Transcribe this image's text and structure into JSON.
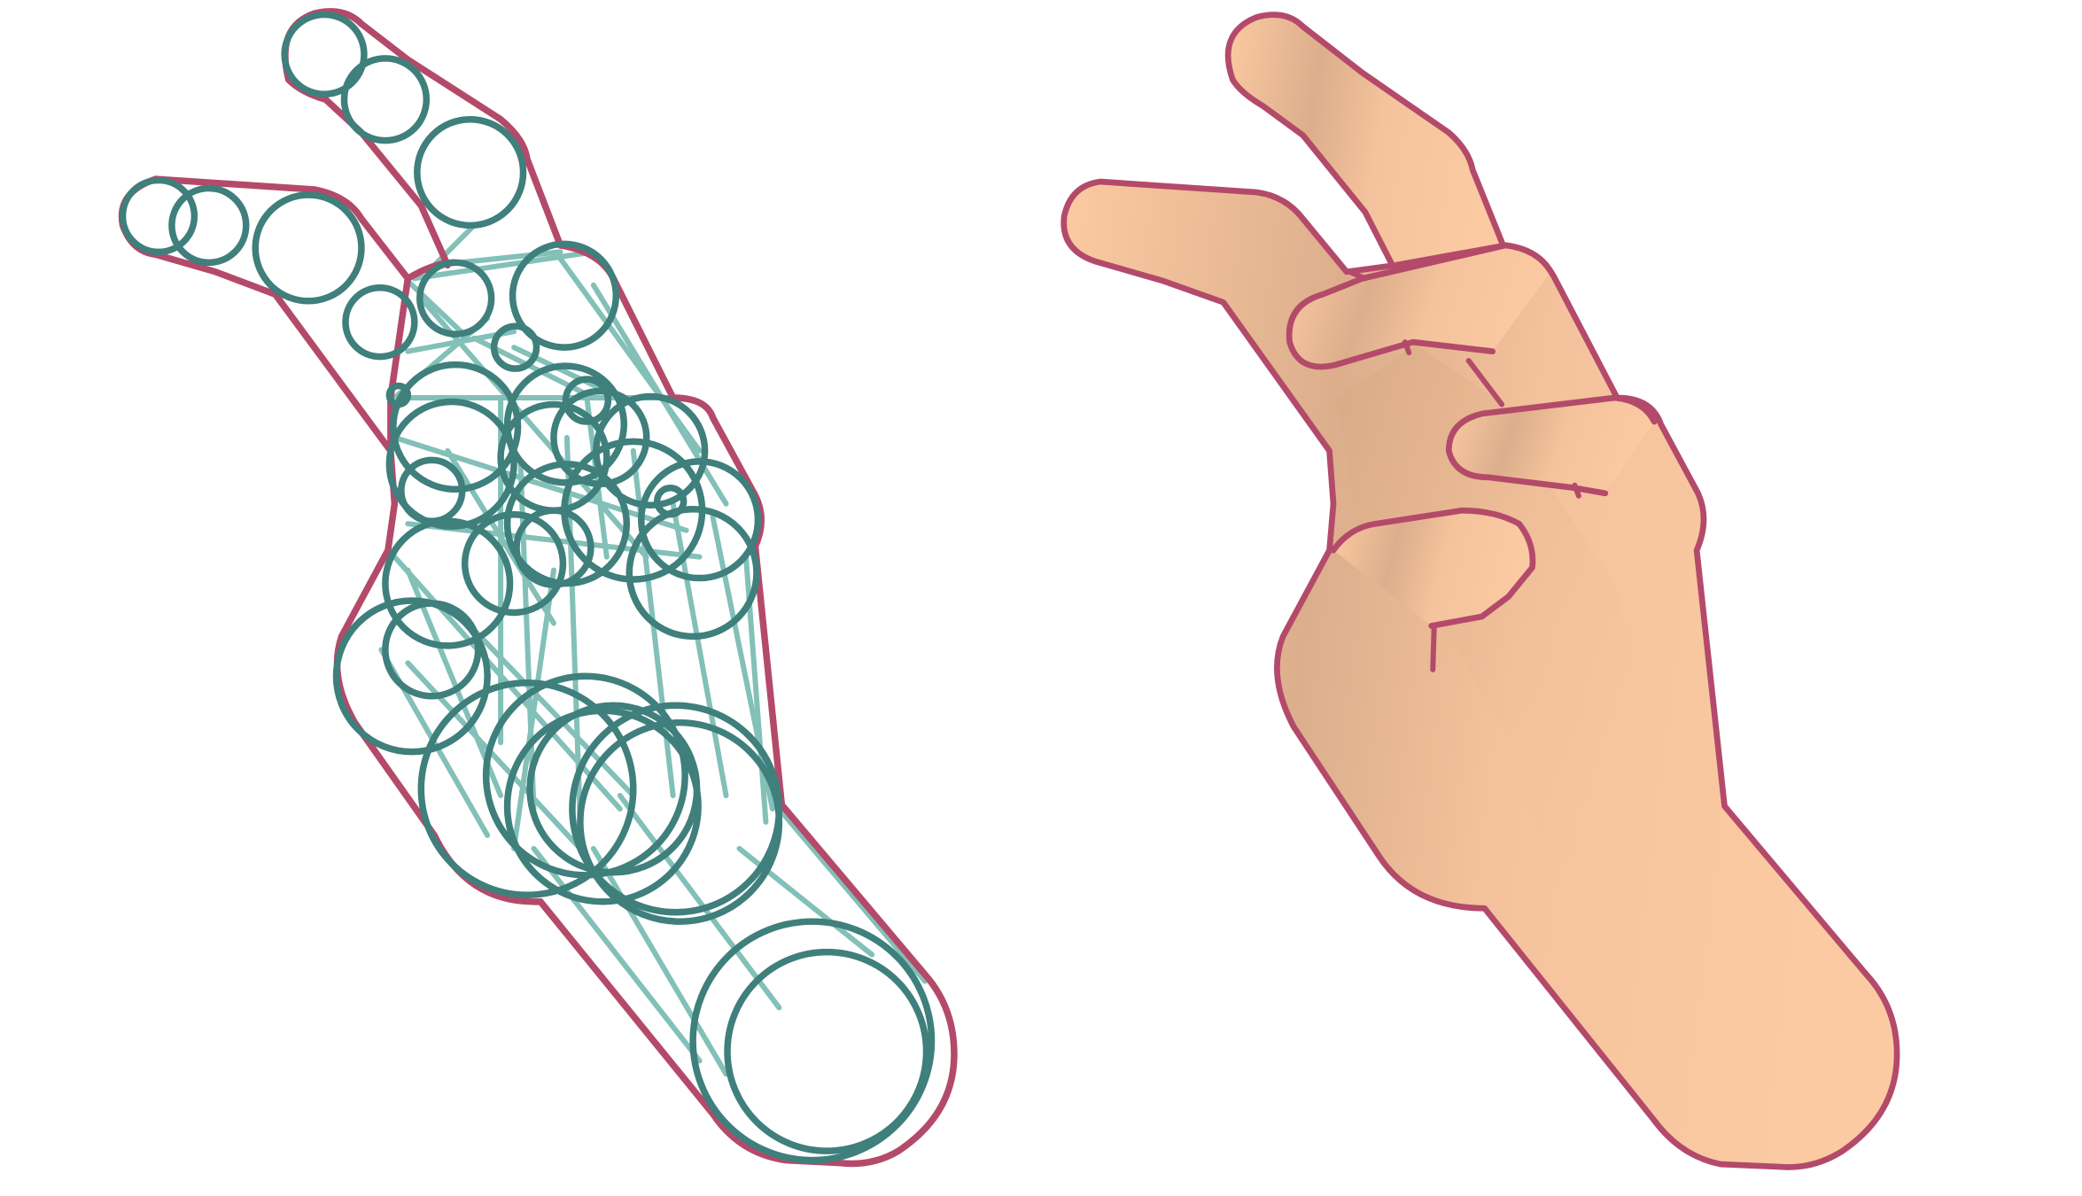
{
  "figure": {
    "colors": {
      "background": "#ffffff",
      "outline": "#b44a6a",
      "sphere": "#3f7f7c",
      "connection": "#82c0b8",
      "skin_light": "#fbcaa2",
      "skin_dark": "#d8a882"
    }
  }
}
